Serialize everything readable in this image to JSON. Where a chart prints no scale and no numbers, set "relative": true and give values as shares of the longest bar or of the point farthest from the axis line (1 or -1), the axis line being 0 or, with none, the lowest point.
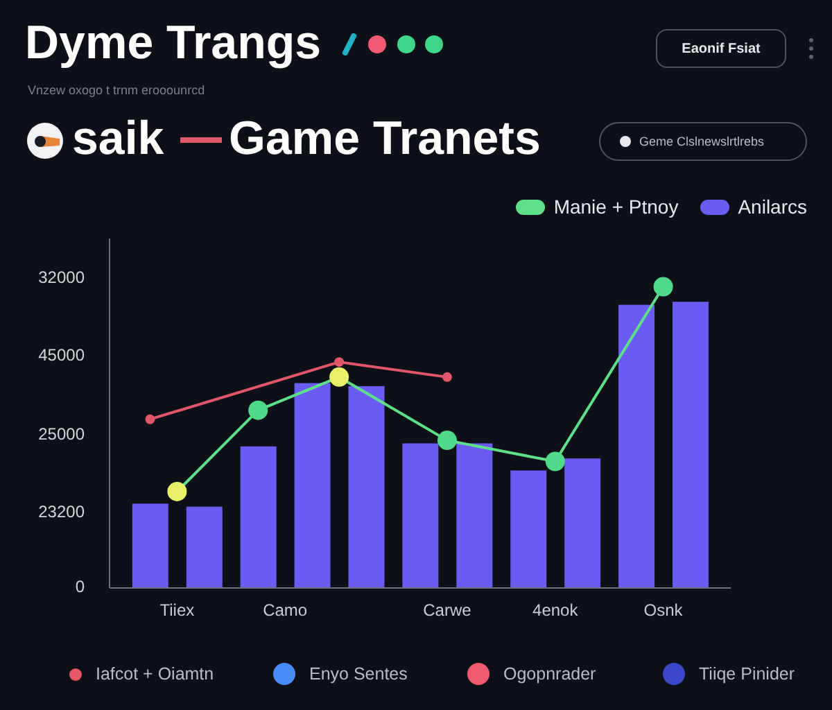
{
  "chart_data": {
    "type": "bar",
    "title": "Dyme Trangs",
    "subtitle": "Vnzew oxogo t trnm erooounrcd",
    "annotations": [
      "Eaonif Fsiat",
      "saik",
      "Game Tranets",
      "Geme Clslnewslrtlrebs",
      "Iafcot + Oiamtn",
      "Enyo Sentes",
      "Ogopnrader",
      "Tiiqe Pinider",
      "32000",
      "45000",
      "25000",
      "23200",
      "0"
    ],
    "relative": true,
    "categories": [
      null,
      null,
      "Tiiex",
      null,
      null,
      null,
      "Camo",
      null,
      null,
      null,
      null,
      null,
      "Carwe",
      null,
      null,
      null,
      "4enok",
      null,
      null,
      null,
      "Osnk",
      null,
      null
    ],
    "legend": "top right",
    "series": [
      {
        "name": "Anilarcs",
        "color": "#6a5cf2",
        "values": [
          null,
          0.28,
          null,
          0.27,
          null,
          0.47,
          null,
          0.68,
          null,
          0.67,
          null,
          0.48,
          null,
          0.48,
          null,
          0.39,
          null,
          0.43,
          null,
          0.94,
          null,
          0.95,
          null
        ]
      },
      {
        "type": "line",
        "name": "Manie + Ptnoy",
        "color": "#5ee08a",
        "marker": "circle",
        "values": [
          null,
          null,
          0.32,
          null,
          null,
          0.59,
          null,
          null,
          0.7,
          null,
          null,
          null,
          0.49,
          null,
          null,
          null,
          0.42,
          null,
          null,
          null,
          1,
          null,
          null
        ],
        "colors": [
          null,
          null,
          "#e8f06a",
          null,
          null,
          "#4fd98a",
          null,
          null,
          "#e8f06a",
          null,
          null,
          null,
          "#4fd98a",
          null,
          null,
          null,
          "#4fd98a",
          null,
          null,
          null,
          "#4fd98a",
          null,
          null
        ]
      },
      {
        "type": "line",
        "color": "#e0566b",
        "marker": "circle",
        "values": [
          null,
          0.56,
          null,
          null,
          null,
          null,
          null,
          null,
          0.75,
          null,
          null,
          null,
          0.7,
          null,
          null,
          null,
          null,
          null,
          null,
          null,
          null,
          null,
          null
        ]
      }
    ]
  }
}
